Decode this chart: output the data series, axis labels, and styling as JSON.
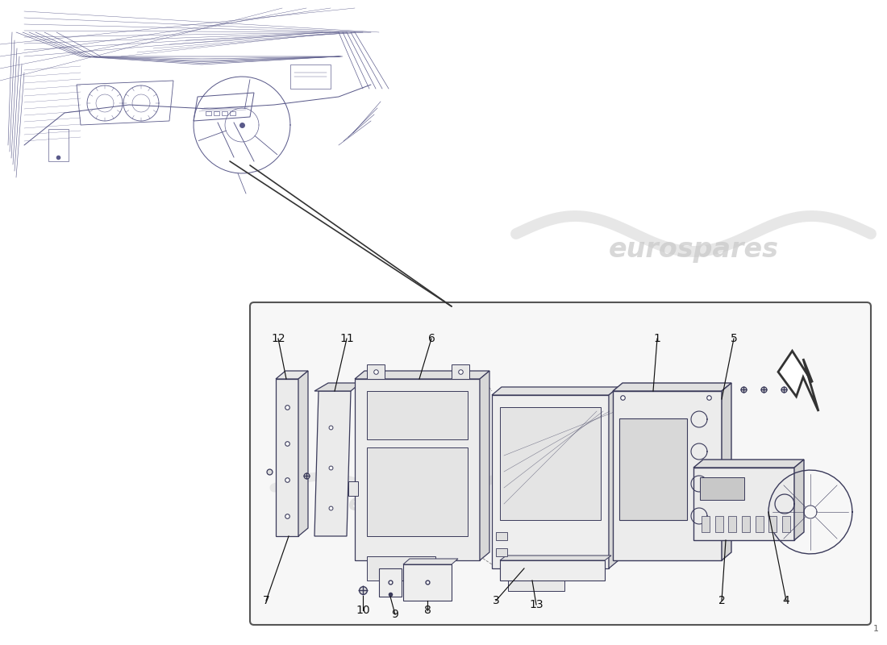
{
  "bg_color": "#ffffff",
  "line_color": "#3a3a5a",
  "watermark_color": "#cccccc",
  "label_fontsize": 10,
  "label_color": "#111111",
  "box_edge_color": "#555555",
  "box_face_color": "#f5f5f5"
}
